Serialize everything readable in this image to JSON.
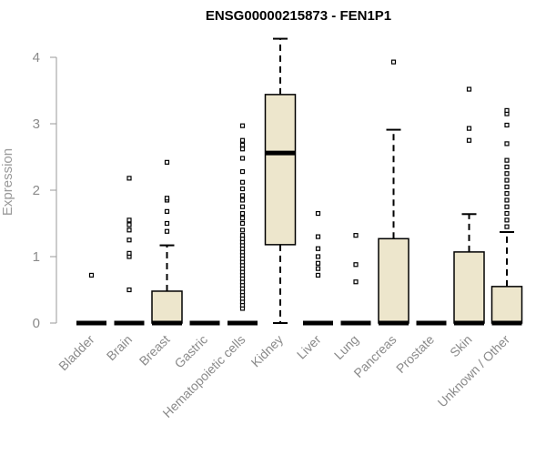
{
  "chart_data": {
    "type": "box",
    "title": "ENSG00000215873 - FEN1P1",
    "xlabel": "",
    "ylabel": "Expression",
    "ylim": [
      0,
      4.3
    ],
    "yticks": [
      0,
      1,
      2,
      3,
      4
    ],
    "box_fill": "#ede6cc",
    "categories": [
      "Bladder",
      "Brain",
      "Breast",
      "Gastric",
      "Hematopoietic cells",
      "Kidney",
      "Liver",
      "Lung",
      "Pancreas",
      "Prostate",
      "Skin",
      "Unknown / Other"
    ],
    "boxes": [
      {
        "category": "Bladder",
        "min": 0,
        "q1": 0,
        "median": 0,
        "q3": 0,
        "max": 0,
        "outliers": [
          0.72
        ]
      },
      {
        "category": "Brain",
        "min": 0,
        "q1": 0,
        "median": 0,
        "q3": 0,
        "max": 0,
        "outliers": [
          0.5,
          1.0,
          1.05,
          1.25,
          1.4,
          1.48,
          1.55,
          2.18
        ]
      },
      {
        "category": "Breast",
        "min": 0,
        "q1": 0,
        "median": 0,
        "q3": 0.48,
        "max": 1.17,
        "outliers": [
          1.38,
          1.5,
          1.68,
          1.85,
          1.88,
          2.42
        ]
      },
      {
        "category": "Gastric",
        "min": 0,
        "q1": 0,
        "median": 0,
        "q3": 0,
        "max": 0,
        "outliers": []
      },
      {
        "category": "Hematopoietic cells",
        "min": 0,
        "q1": 0,
        "median": 0,
        "q3": 0,
        "max": 0,
        "outliers": [
          0.22,
          0.27,
          0.32,
          0.37,
          0.42,
          0.47,
          0.52,
          0.57,
          0.62,
          0.67,
          0.72,
          0.77,
          0.82,
          0.87,
          0.92,
          0.97,
          1.02,
          1.07,
          1.12,
          1.17,
          1.22,
          1.27,
          1.32,
          1.4,
          1.5,
          1.58,
          1.65,
          1.75,
          1.85,
          1.92,
          2.02,
          2.12,
          2.28,
          2.48,
          2.62,
          2.68,
          2.75,
          2.97
        ]
      },
      {
        "category": "Kidney",
        "min": 0,
        "q1": 1.18,
        "median": 2.56,
        "q3": 3.44,
        "max": 4.28,
        "outliers": []
      },
      {
        "category": "Liver",
        "min": 0,
        "q1": 0,
        "median": 0,
        "q3": 0,
        "max": 0,
        "outliers": [
          0.72,
          0.82,
          0.9,
          1.0,
          1.12,
          1.3,
          1.65
        ]
      },
      {
        "category": "Lung",
        "min": 0,
        "q1": 0,
        "median": 0,
        "q3": 0,
        "max": 0,
        "outliers": [
          0.62,
          0.88,
          1.32
        ]
      },
      {
        "category": "Pancreas",
        "min": 0,
        "q1": 0,
        "median": 0,
        "q3": 1.27,
        "max": 2.91,
        "outliers": [
          3.93
        ]
      },
      {
        "category": "Prostate",
        "min": 0,
        "q1": 0,
        "median": 0,
        "q3": 0,
        "max": 0,
        "outliers": []
      },
      {
        "category": "Skin",
        "min": 0,
        "q1": 0,
        "median": 0,
        "q3": 1.07,
        "max": 1.64,
        "outliers": [
          2.75,
          2.93,
          3.52
        ]
      },
      {
        "category": "Unknown / Other",
        "min": 0,
        "q1": 0,
        "median": 0,
        "q3": 0.55,
        "max": 1.37,
        "outliers": [
          1.45,
          1.55,
          1.65,
          1.75,
          1.85,
          1.95,
          2.05,
          2.15,
          2.25,
          2.35,
          2.45,
          2.7,
          2.98,
          3.15,
          3.2
        ]
      }
    ]
  }
}
